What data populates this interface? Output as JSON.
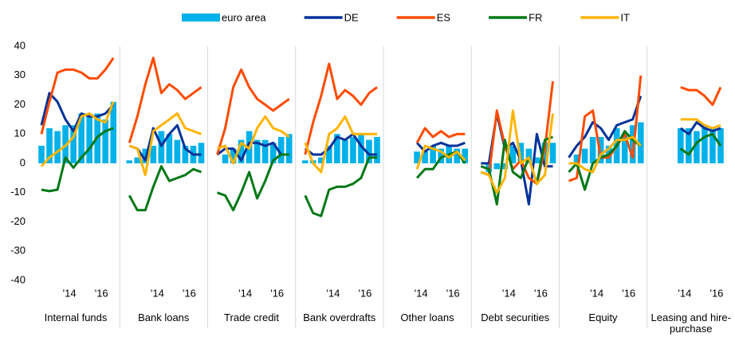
{
  "chart_data": {
    "type": "panel_bar_line",
    "panels": [
      "Internal funds",
      "Bank loans",
      "Trade credit",
      "Bank overdrafts",
      "Other loans",
      "Debt securities",
      "Equity",
      "Leasing and hire-purchase"
    ],
    "x": [
      null,
      null,
      null,
      "'14",
      null,
      null,
      null,
      "'16",
      null,
      null
    ],
    "ylim": [
      -40,
      40
    ],
    "yticks": [
      -40,
      -30,
      -20,
      -10,
      0,
      10,
      20,
      30,
      40
    ],
    "series": [
      {
        "name": "euro area",
        "color": "#00b1ea",
        "kind": "bar",
        "values": [
          [
            6,
            12,
            11,
            13,
            13,
            17,
            17,
            17,
            15,
            21
          ],
          [
            1,
            2,
            5,
            6,
            11,
            10,
            8,
            6,
            6,
            7
          ],
          [
            0,
            3,
            5,
            8,
            11,
            8,
            8,
            7,
            9,
            10
          ],
          [
            1,
            1,
            2,
            6,
            10,
            8,
            9,
            10,
            8,
            9
          ],
          [
            null,
            null,
            null,
            4,
            4,
            6,
            5,
            6,
            5,
            5
          ],
          [
            0,
            -3,
            -2,
            -2,
            6,
            7,
            5,
            2,
            7,
            7
          ],
          [
            0,
            3,
            5,
            9,
            9,
            6,
            12,
            10,
            13,
            14
          ],
          [
            null,
            null,
            null,
            12,
            12,
            11,
            13,
            12,
            12,
            null
          ]
        ]
      },
      {
        "name": "DE",
        "color": "#003299",
        "kind": "line",
        "values": [
          [
            13,
            24,
            21,
            15,
            11,
            17,
            16,
            16,
            17,
            20
          ],
          [
            6,
            5,
            1,
            12,
            6,
            10,
            13,
            5,
            3,
            3
          ],
          [
            3,
            5,
            5,
            1,
            7,
            7,
            6,
            7,
            3,
            3
          ],
          [
            5,
            3,
            3,
            5,
            9,
            8,
            10,
            6,
            3,
            3
          ],
          [
            null,
            null,
            null,
            7,
            4,
            6,
            7,
            6,
            6,
            7
          ],
          [
            0,
            0,
            17,
            5,
            7,
            1,
            -14,
            10,
            -1,
            -1
          ],
          [
            2,
            6,
            9,
            14,
            12,
            8,
            13,
            14,
            15,
            23
          ],
          [
            null,
            null,
            null,
            12,
            10,
            14,
            12,
            11,
            12,
            null
          ]
        ]
      },
      {
        "name": "ES",
        "color": "#ff4b00",
        "kind": "line",
        "values": [
          [
            10,
            21,
            31,
            32,
            32,
            31,
            29,
            29,
            32,
            36
          ],
          [
            7,
            16,
            27,
            36,
            24,
            27,
            25,
            22,
            24,
            26
          ],
          [
            3,
            12,
            26,
            32,
            26,
            22,
            20,
            18,
            20,
            22
          ],
          [
            3,
            14,
            23,
            34,
            22,
            25,
            23,
            20,
            24,
            26
          ],
          [
            null,
            null,
            null,
            7,
            12,
            9,
            11,
            9,
            10,
            10
          ],
          [
            -3,
            -4,
            18,
            6,
            -2,
            1,
            -5,
            -7,
            5,
            28
          ],
          [
            -6,
            -5,
            16,
            18,
            2,
            2,
            6,
            10,
            2,
            30
          ],
          [
            null,
            null,
            null,
            26,
            25,
            25,
            23,
            20,
            26,
            null
          ]
        ]
      },
      {
        "name": "FR",
        "color": "#007816",
        "kind": "line",
        "values": [
          [
            -9,
            -9.5,
            -9,
            2,
            -1.5,
            2,
            5,
            9,
            11,
            12
          ],
          [
            -11,
            -16,
            -16,
            -8,
            -1,
            -6,
            -5,
            -4,
            -2,
            -3
          ],
          [
            -10,
            -11,
            -16,
            -10,
            -3,
            -12,
            -6,
            1,
            3,
            3
          ],
          [
            -11,
            -17,
            -18,
            -9,
            -8,
            -8,
            -7,
            -5,
            2,
            2
          ],
          [
            null,
            null,
            null,
            -5,
            -2,
            -2,
            2,
            3,
            4,
            0
          ],
          [
            -1,
            -2,
            -14,
            8,
            -3,
            -5,
            2,
            -7,
            8,
            9
          ],
          [
            -3,
            0,
            -9,
            0,
            2,
            3,
            6,
            11,
            8,
            6
          ],
          [
            null,
            null,
            null,
            5,
            3,
            7,
            9,
            10,
            6,
            null
          ]
        ]
      },
      {
        "name": "IT",
        "color": "#ffb400",
        "kind": "line",
        "values": [
          [
            -1,
            2,
            4,
            6,
            9,
            16,
            17,
            15,
            14,
            21
          ],
          [
            6,
            5,
            -4,
            11,
            13,
            15,
            17,
            12,
            11,
            10
          ],
          [
            5,
            6,
            0,
            7,
            5,
            12,
            16,
            12,
            11,
            9
          ],
          [
            7,
            0,
            -3,
            10,
            12,
            16,
            10,
            10,
            10,
            10
          ],
          [
            null,
            null,
            null,
            -2,
            6,
            5,
            4,
            2,
            4,
            1
          ],
          [
            -3,
            -4,
            -10,
            -5,
            18,
            0,
            2,
            -7,
            -4,
            17
          ],
          [
            0,
            0,
            -2,
            -3,
            3,
            5,
            8,
            8,
            9,
            6
          ],
          [
            null,
            null,
            null,
            15,
            15,
            15,
            13,
            12,
            13,
            null
          ]
        ]
      }
    ]
  }
}
